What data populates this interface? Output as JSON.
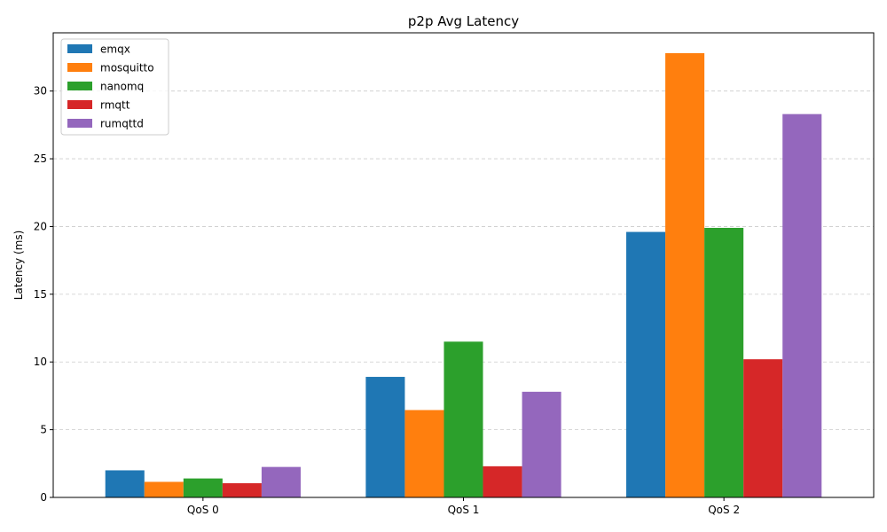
{
  "chart_data": {
    "type": "bar",
    "title": "p2p Avg Latency",
    "xlabel": "",
    "ylabel": "Latency (ms)",
    "categories": [
      "QoS 0",
      "QoS 1",
      "QoS 2"
    ],
    "ylim": [
      0,
      34.3
    ],
    "yticks": [
      0,
      5,
      10,
      15,
      20,
      25,
      30
    ],
    "grid": {
      "y": true,
      "style": "dashed",
      "color": "#cccccc"
    },
    "legend_position": "top-left",
    "series": [
      {
        "name": "emqx",
        "color": "#1f77b4",
        "values": [
          2.0,
          8.9,
          19.6
        ]
      },
      {
        "name": "mosquitto",
        "color": "#ff7f0e",
        "values": [
          1.15,
          6.45,
          32.8
        ]
      },
      {
        "name": "nanomq",
        "color": "#2ca02c",
        "values": [
          1.4,
          11.5,
          19.9
        ]
      },
      {
        "name": "rmqtt",
        "color": "#d62728",
        "values": [
          1.05,
          2.3,
          10.2
        ]
      },
      {
        "name": "rumqttd",
        "color": "#9467bd",
        "values": [
          2.25,
          7.8,
          28.3
        ]
      }
    ]
  }
}
